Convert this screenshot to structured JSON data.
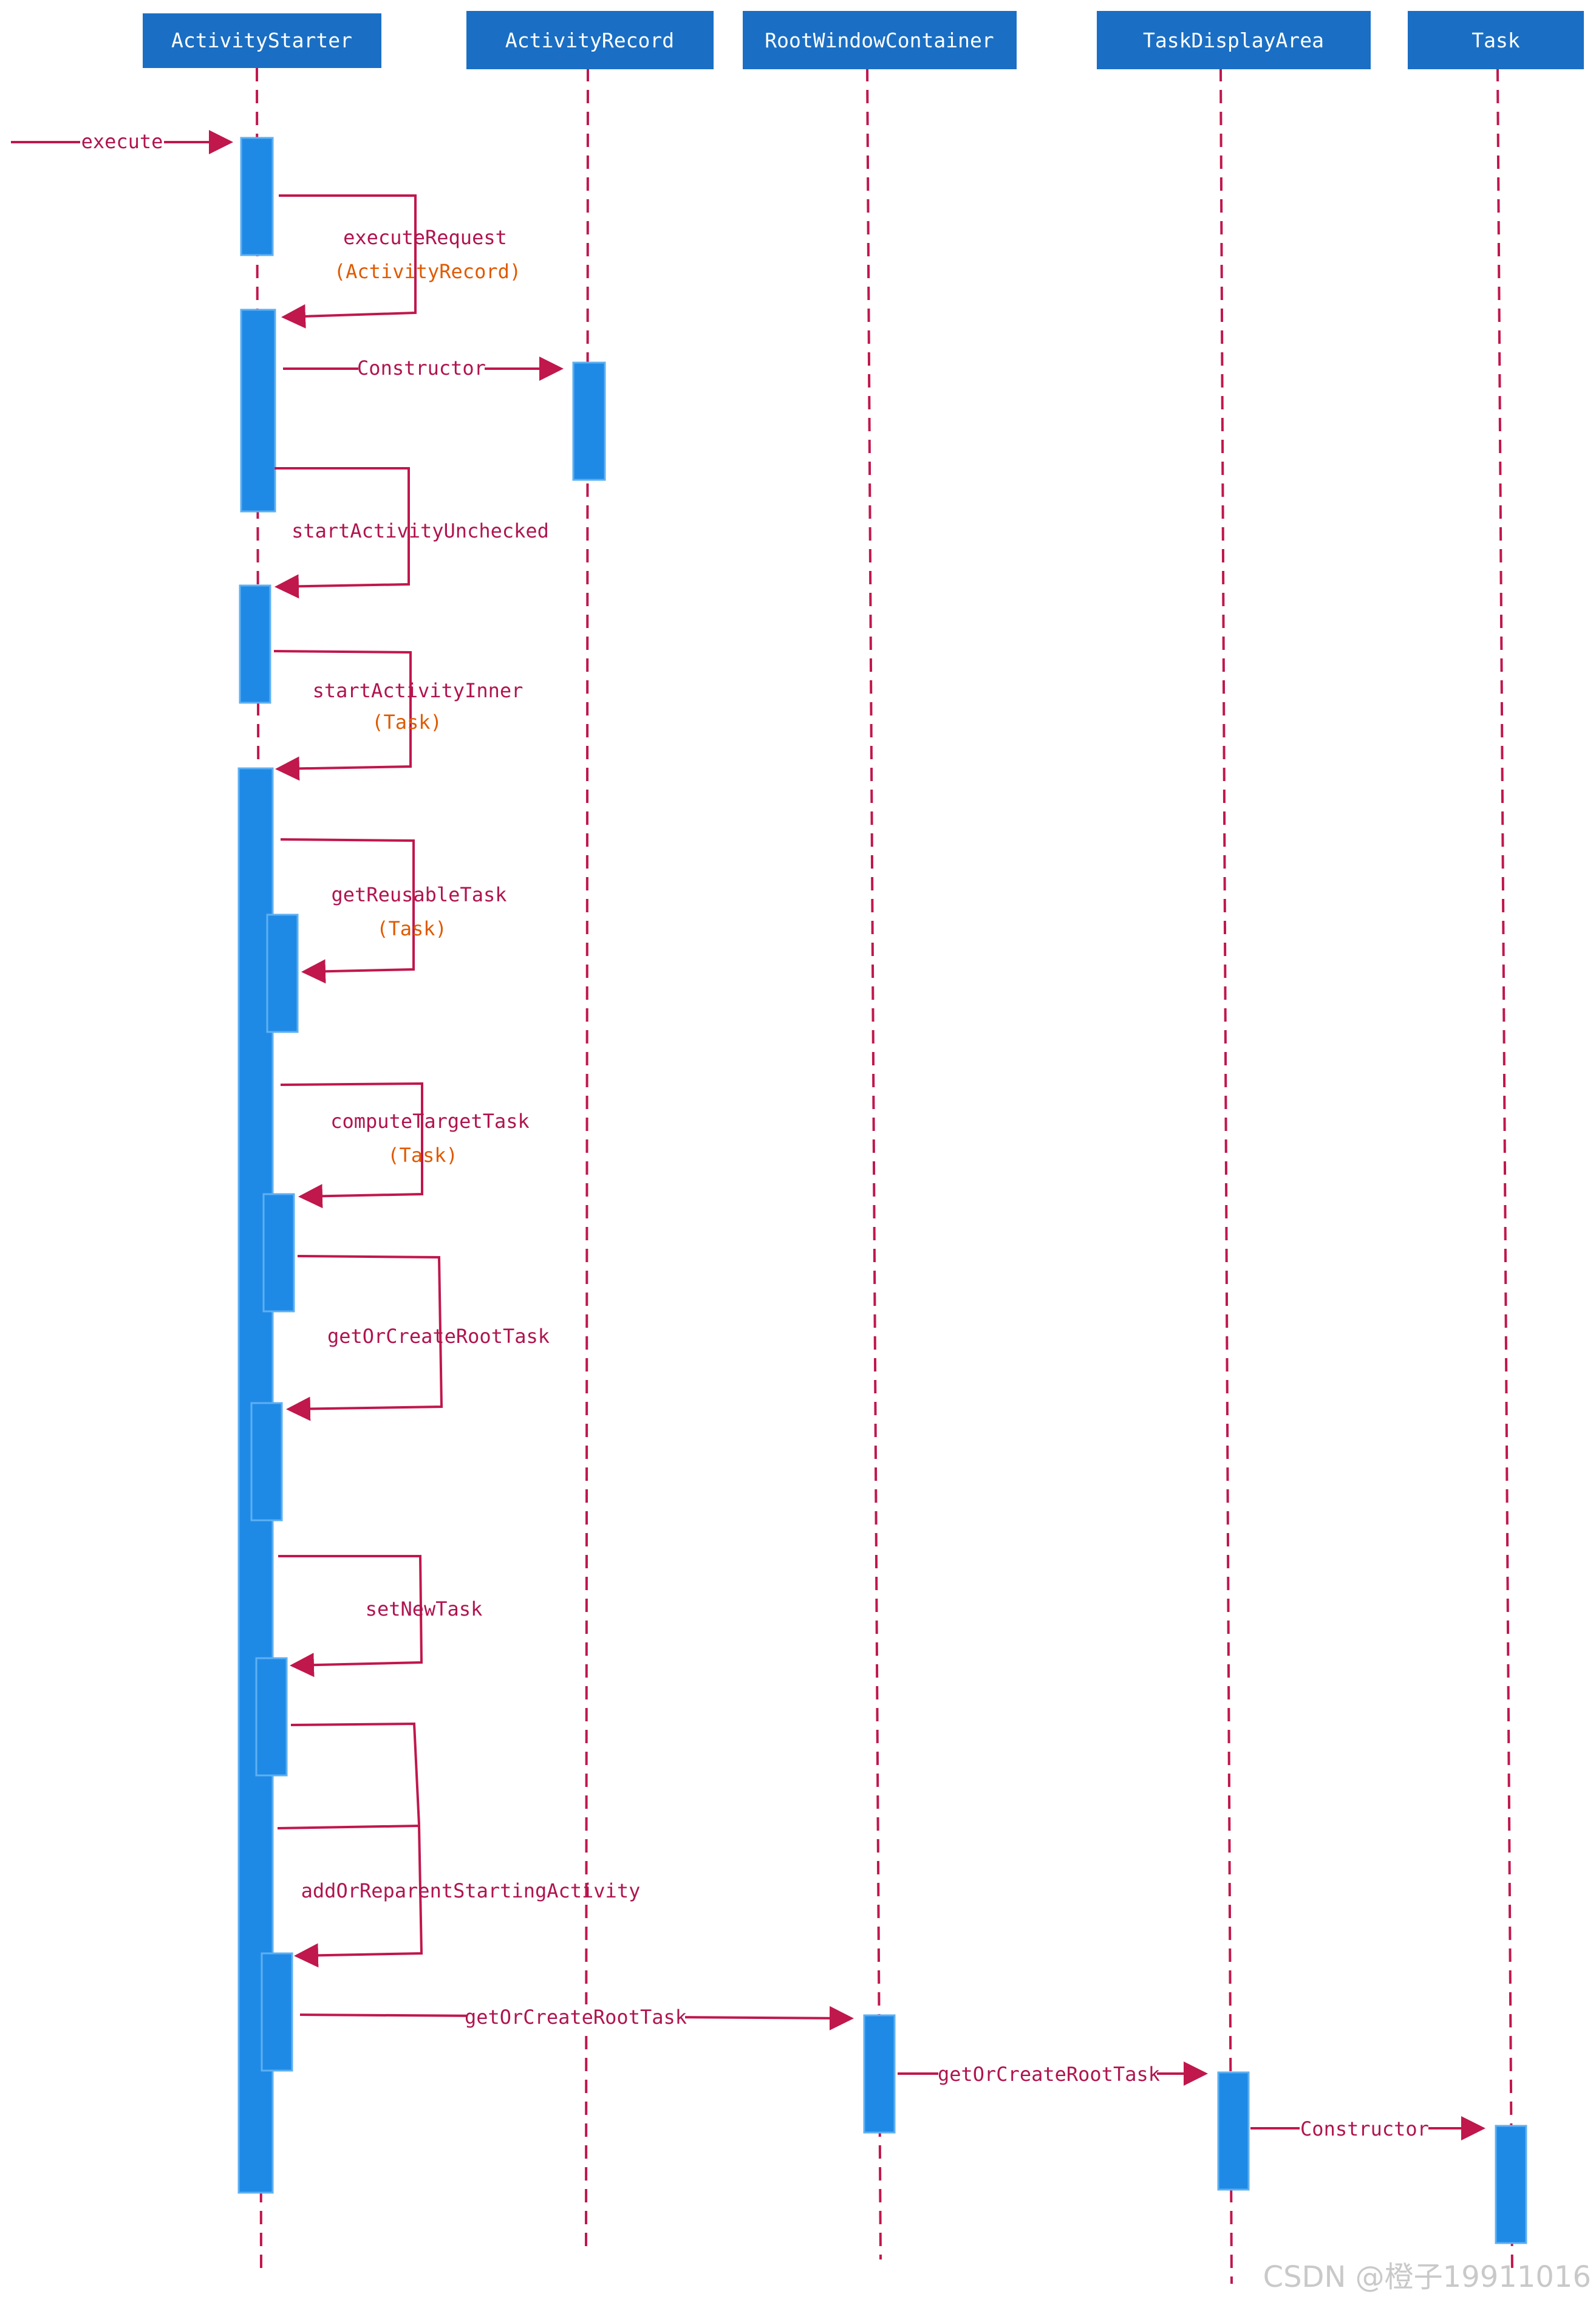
{
  "colors": {
    "header_bg": "#1a6fc4",
    "activation": "#1f8ae6",
    "lifeline": "#c0174c",
    "arrow": "#c0174c",
    "message_text": "#b0144f",
    "return_text": "#e05a00"
  },
  "participants": [
    {
      "id": "as",
      "label": "ActivityStarter"
    },
    {
      "id": "ar",
      "label": "ActivityRecord"
    },
    {
      "id": "rwc",
      "label": "RootWindowContainer"
    },
    {
      "id": "tda",
      "label": "TaskDisplayArea"
    },
    {
      "id": "t",
      "label": "Task"
    }
  ],
  "messages": [
    {
      "label": "execute"
    },
    {
      "label": "executeRequest",
      "returns": "(ActivityRecord)"
    },
    {
      "label": "Constructor"
    },
    {
      "label": "startActivityUnchecked"
    },
    {
      "label": "startActivityInner",
      "returns": "(Task)"
    },
    {
      "label": "getReusableTask",
      "returns": "(Task)"
    },
    {
      "label": "computeTargetTask",
      "returns": "(Task)"
    },
    {
      "label": "getOrCreateRootTask"
    },
    {
      "label": "setNewTask"
    },
    {
      "label": "addOrReparentStartingActivity"
    },
    {
      "label": "getOrCreateRootTask"
    },
    {
      "label": "getOrCreateRootTask"
    },
    {
      "label": "Constructor"
    }
  ],
  "watermark": "CSDN @橙子19911016"
}
